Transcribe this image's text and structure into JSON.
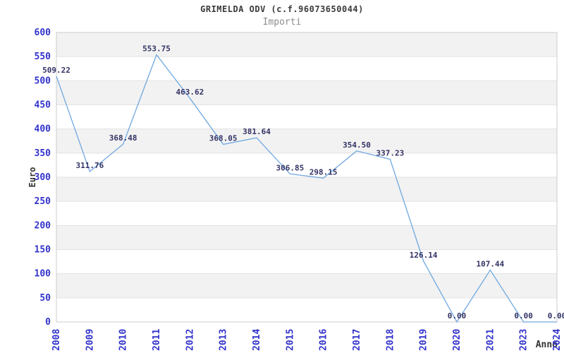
{
  "chart_data": {
    "type": "line",
    "title": "GRIMELDA ODV (c.f.96073650044)",
    "subtitle": "Importi",
    "xlabel": "Anno",
    "ylabel": "Euro",
    "categories": [
      "2008",
      "2009",
      "2010",
      "2011",
      "2012",
      "2013",
      "2014",
      "2015",
      "2016",
      "2017",
      "2018",
      "2019",
      "2020",
      "2021",
      "2023",
      "2024"
    ],
    "values": [
      509.22,
      311.76,
      368.48,
      553.75,
      463.62,
      368.05,
      381.64,
      306.85,
      298.15,
      354.5,
      337.23,
      126.14,
      0.0,
      107.44,
      0.0,
      0.0
    ],
    "point_labels": [
      "509.22",
      "311.76",
      "368.48",
      "553.75",
      "463.62",
      "368.05",
      "381.64",
      "306.85",
      "298.15",
      "354.50",
      "337.23",
      "126.14",
      "0.00",
      "107.44",
      "0.00",
      "0.00"
    ],
    "ylim": [
      0,
      600
    ],
    "yticks": [
      0,
      50,
      100,
      150,
      200,
      250,
      300,
      350,
      400,
      450,
      500,
      550,
      600
    ],
    "grid": true,
    "legend": false,
    "band_style": "alternating horizontal stripes"
  },
  "colors": {
    "line": "#6fa8e0",
    "point_label": "#333366",
    "tick_label": "#3232cc",
    "band": "#f2f2f2",
    "grid": "#e2e2e2",
    "plot_border": "#cccccc",
    "title": "#3a3a3a",
    "subtitle": "#8c8c8c",
    "axis_title": "#333333",
    "background": "#ffffff"
  }
}
